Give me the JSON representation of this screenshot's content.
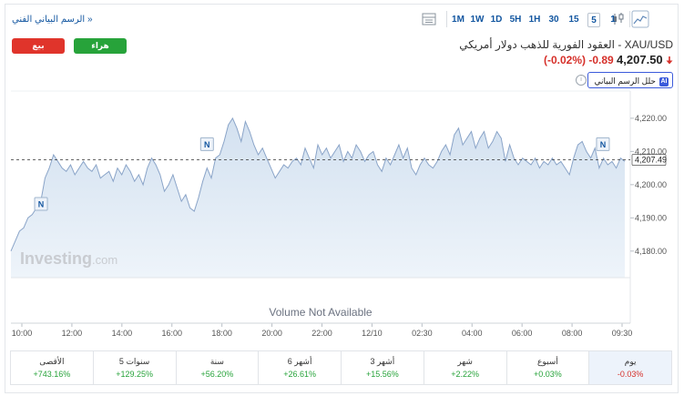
{
  "toolbar": {
    "advanced_link": "الرسم البياني الفني »",
    "timeframes": [
      "1",
      "5",
      "15",
      "30",
      "1H",
      "5H",
      "1D",
      "1W",
      "1M"
    ],
    "active_timeframe": "5",
    "icons": [
      "area-chart-icon",
      "candlestick-icon",
      "table-icon"
    ]
  },
  "trade": {
    "sell_label": "بيع",
    "buy_label": "هراء"
  },
  "instrument": {
    "title": "XAU/USD - العقود الفورية للذهب دولار أمريكي",
    "last": "4,207.50",
    "change": "-0.89",
    "change_pct": "(-0.02%)",
    "direction_icon": "down-arrow-icon",
    "analyze_label": "حلل الرسم البياني",
    "analyze_badge": "AI"
  },
  "chart": {
    "watermark": "Investing.com",
    "volume_text": "Volume Not Available",
    "current_price_label": "4,207.49",
    "news_marker": "N",
    "line_color": "#8aa4c8",
    "fill_color": "#dfe9f4",
    "dashed_line_color": "#333333"
  },
  "chart_data": {
    "type": "area",
    "y_ticks": [
      "4,180.00",
      "4,190.00",
      "4,200.00",
      "4,210.00",
      "4,220.00"
    ],
    "ylim": [
      4172,
      4226
    ],
    "x_ticks": [
      "10:00",
      "12:00",
      "14:00",
      "16:00",
      "18:00",
      "20:00",
      "22:00",
      "12/10",
      "02:30",
      "04:00",
      "06:00",
      "08:00",
      "09:30"
    ],
    "last_price": 4207.49,
    "values": [
      4180,
      4183,
      4186,
      4187,
      4190,
      4191,
      4193,
      4195,
      4202,
      4205,
      4209,
      4207,
      4205,
      4204,
      4206,
      4203,
      4205,
      4207,
      4205,
      4204,
      4206,
      4202,
      4203,
      4204,
      4201,
      4205,
      4203,
      4206,
      4204,
      4201,
      4203,
      4200,
      4205,
      4208,
      4206,
      4203,
      4198,
      4200,
      4203,
      4199,
      4195,
      4197,
      4193,
      4192,
      4196,
      4201,
      4205,
      4202,
      4208,
      4209,
      4213,
      4218,
      4220,
      4217,
      4213,
      4219,
      4216,
      4212,
      4209,
      4211,
      4208,
      4205,
      4202,
      4204,
      4206,
      4205,
      4207,
      4208,
      4206,
      4211,
      4208,
      4205,
      4212,
      4209,
      4211,
      4208,
      4210,
      4212,
      4207,
      4210,
      4208,
      4212,
      4210,
      4207,
      4209,
      4210,
      4206,
      4204,
      4208,
      4206,
      4209,
      4212,
      4208,
      4211,
      4205,
      4203,
      4206,
      4208,
      4206,
      4205,
      4207,
      4210,
      4212,
      4209,
      4215,
      4217,
      4212,
      4214,
      4216,
      4211,
      4214,
      4216,
      4211,
      4213,
      4216,
      4214,
      4207,
      4212,
      4208,
      4206,
      4208,
      4207,
      4206,
      4208,
      4205,
      4207,
      4206,
      4208,
      4206,
      4207,
      4205,
      4203,
      4208,
      4212,
      4213,
      4210,
      4208,
      4211,
      4205,
      4208,
      4206,
      4207,
      4205,
      4208,
      4207
    ]
  },
  "news_markers": [
    {
      "time": "10:45",
      "value": 4192
    },
    {
      "time": "17:15",
      "value": 4210
    },
    {
      "time": "08:45",
      "value": 4210
    }
  ],
  "performance": [
    {
      "label": "يوم",
      "value": "-0.03%",
      "sign": "neg",
      "selected": true
    },
    {
      "label": "أسبوع",
      "value": "+0.03%",
      "sign": "pos"
    },
    {
      "label": "شهر",
      "value": "+2.22%",
      "sign": "pos"
    },
    {
      "label": "3 أشهر",
      "value": "+15.56%",
      "sign": "pos"
    },
    {
      "label": "6 أشهر",
      "value": "+26.61%",
      "sign": "pos"
    },
    {
      "label": "سنة",
      "value": "+56.20%",
      "sign": "pos"
    },
    {
      "label": "5 سنوات",
      "value": "+129.25%",
      "sign": "pos"
    },
    {
      "label": "الأقصى",
      "value": "+743.16%",
      "sign": "pos"
    }
  ]
}
